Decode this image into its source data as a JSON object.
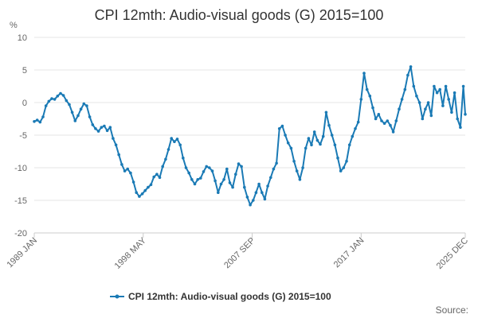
{
  "chart_data": {
    "type": "line",
    "title": "CPI 12mth: Audio-visual goods (G) 2015=100",
    "unit_label": "%",
    "ylim": [
      -20,
      10
    ],
    "y_ticks": [
      "10",
      "5",
      "0",
      "-5",
      "-10",
      "-15",
      "-20"
    ],
    "x_ticks": [
      "1989 JAN",
      "1998 MAY",
      "2007 SEP",
      "2017 JAN",
      "2025 DEC"
    ],
    "x_range": [
      "1989-01",
      "2025-12"
    ],
    "grid": true,
    "legend_position": "bottom",
    "source_label": "Source:",
    "series": [
      {
        "name": "CPI 12mth: Audio-visual goods (G) 2015=100",
        "color": "#1a7ab5",
        "points": [
          [
            "1989-01",
            -2.9
          ],
          [
            "1989-04",
            -2.7
          ],
          [
            "1989-07",
            -3.0
          ],
          [
            "1989-10",
            -2.2
          ],
          [
            "1990-01",
            -0.5
          ],
          [
            "1990-04",
            0.2
          ],
          [
            "1990-07",
            0.6
          ],
          [
            "1990-10",
            0.5
          ],
          [
            "1991-01",
            1.0
          ],
          [
            "1991-04",
            1.4
          ],
          [
            "1991-07",
            1.1
          ],
          [
            "1991-10",
            0.3
          ],
          [
            "1992-01",
            -0.3
          ],
          [
            "1992-04",
            -1.5
          ],
          [
            "1992-07",
            -2.8
          ],
          [
            "1992-10",
            -2.0
          ],
          [
            "1993-01",
            -1.0
          ],
          [
            "1993-04",
            -0.2
          ],
          [
            "1993-07",
            -0.5
          ],
          [
            "1993-10",
            -2.2
          ],
          [
            "1994-01",
            -3.4
          ],
          [
            "1994-04",
            -4.0
          ],
          [
            "1994-07",
            -4.4
          ],
          [
            "1994-10",
            -3.8
          ],
          [
            "1995-01",
            -3.6
          ],
          [
            "1995-04",
            -4.3
          ],
          [
            "1995-07",
            -3.8
          ],
          [
            "1995-10",
            -5.5
          ],
          [
            "1996-01",
            -6.5
          ],
          [
            "1996-04",
            -8.0
          ],
          [
            "1996-07",
            -9.5
          ],
          [
            "1996-10",
            -10.5
          ],
          [
            "1997-01",
            -10.2
          ],
          [
            "1997-04",
            -10.8
          ],
          [
            "1997-07",
            -12.2
          ],
          [
            "1997-10",
            -13.8
          ],
          [
            "1998-01",
            -14.4
          ],
          [
            "1998-04",
            -14.0
          ],
          [
            "1998-07",
            -13.5
          ],
          [
            "1998-10",
            -13.0
          ],
          [
            "1999-01",
            -12.6
          ],
          [
            "1999-04",
            -11.4
          ],
          [
            "1999-07",
            -11.0
          ],
          [
            "1999-10",
            -11.5
          ],
          [
            "2000-01",
            -9.8
          ],
          [
            "2000-04",
            -8.7
          ],
          [
            "2000-07",
            -7.2
          ],
          [
            "2000-10",
            -5.5
          ],
          [
            "2001-01",
            -6.0
          ],
          [
            "2001-04",
            -5.6
          ],
          [
            "2001-07",
            -6.5
          ],
          [
            "2001-10",
            -8.5
          ],
          [
            "2002-01",
            -10.0
          ],
          [
            "2002-04",
            -10.8
          ],
          [
            "2002-07",
            -11.8
          ],
          [
            "2002-10",
            -12.5
          ],
          [
            "2003-01",
            -11.8
          ],
          [
            "2003-04",
            -11.6
          ],
          [
            "2003-07",
            -10.6
          ],
          [
            "2003-10",
            -9.8
          ],
          [
            "2004-01",
            -10.0
          ],
          [
            "2004-04",
            -10.5
          ],
          [
            "2004-07",
            -12.0
          ],
          [
            "2004-10",
            -13.8
          ],
          [
            "2005-01",
            -12.5
          ],
          [
            "2005-04",
            -11.8
          ],
          [
            "2005-07",
            -10.2
          ],
          [
            "2005-10",
            -12.3
          ],
          [
            "2006-01",
            -13.0
          ],
          [
            "2006-04",
            -11.0
          ],
          [
            "2006-07",
            -9.4
          ],
          [
            "2006-10",
            -9.8
          ],
          [
            "2007-01",
            -13.0
          ],
          [
            "2007-04",
            -14.5
          ],
          [
            "2007-07",
            -15.7
          ],
          [
            "2007-10",
            -15.0
          ],
          [
            "2008-01",
            -13.8
          ],
          [
            "2008-04",
            -12.5
          ],
          [
            "2008-07",
            -13.8
          ],
          [
            "2008-10",
            -14.8
          ],
          [
            "2009-01",
            -12.8
          ],
          [
            "2009-04",
            -11.5
          ],
          [
            "2009-07",
            -10.2
          ],
          [
            "2009-10",
            -9.3
          ],
          [
            "2010-01",
            -4.0
          ],
          [
            "2010-04",
            -3.6
          ],
          [
            "2010-07",
            -5.0
          ],
          [
            "2010-10",
            -6.2
          ],
          [
            "2011-01",
            -7.0
          ],
          [
            "2011-04",
            -9.0
          ],
          [
            "2011-07",
            -10.5
          ],
          [
            "2011-10",
            -11.8
          ],
          [
            "2012-01",
            -10.0
          ],
          [
            "2012-04",
            -7.0
          ],
          [
            "2012-07",
            -5.5
          ],
          [
            "2012-10",
            -6.5
          ],
          [
            "2013-01",
            -4.5
          ],
          [
            "2013-04",
            -5.8
          ],
          [
            "2013-07",
            -6.4
          ],
          [
            "2013-10",
            -5.2
          ],
          [
            "2014-01",
            -1.5
          ],
          [
            "2014-04",
            -3.5
          ],
          [
            "2014-07",
            -5.0
          ],
          [
            "2014-10",
            -6.5
          ],
          [
            "2015-01",
            -8.5
          ],
          [
            "2015-04",
            -10.5
          ],
          [
            "2015-07",
            -10.0
          ],
          [
            "2015-10",
            -9.0
          ],
          [
            "2016-01",
            -6.5
          ],
          [
            "2016-04",
            -5.2
          ],
          [
            "2016-07",
            -4.0
          ],
          [
            "2016-10",
            -3.0
          ],
          [
            "2017-01",
            0.5
          ],
          [
            "2017-04",
            4.5
          ],
          [
            "2017-07",
            2.0
          ],
          [
            "2017-10",
            1.0
          ],
          [
            "2018-01",
            -0.8
          ],
          [
            "2018-04",
            -2.5
          ],
          [
            "2018-07",
            -1.8
          ],
          [
            "2018-10",
            -2.8
          ],
          [
            "2019-01",
            -3.2
          ],
          [
            "2019-04",
            -2.8
          ],
          [
            "2019-07",
            -3.5
          ],
          [
            "2019-10",
            -4.5
          ],
          [
            "2020-01",
            -2.8
          ],
          [
            "2020-04",
            -1.0
          ],
          [
            "2020-07",
            0.5
          ],
          [
            "2020-10",
            2.0
          ],
          [
            "2021-01",
            4.2
          ],
          [
            "2021-04",
            5.5
          ],
          [
            "2021-07",
            2.5
          ],
          [
            "2021-10",
            1.0
          ],
          [
            "2022-01",
            0.0
          ],
          [
            "2022-04",
            -2.5
          ],
          [
            "2022-07",
            -1.0
          ],
          [
            "2022-10",
            0.0
          ],
          [
            "2023-01",
            -2.0
          ],
          [
            "2023-04",
            2.5
          ],
          [
            "2023-07",
            1.5
          ],
          [
            "2023-10",
            2.0
          ],
          [
            "2024-01",
            -0.5
          ],
          [
            "2024-04",
            2.5
          ],
          [
            "2024-07",
            0.5
          ],
          [
            "2024-10",
            -1.5
          ],
          [
            "2025-01",
            1.5
          ],
          [
            "2025-04",
            -2.5
          ],
          [
            "2025-07",
            -3.8
          ],
          [
            "2025-10",
            2.5
          ],
          [
            "2025-12",
            -1.8
          ]
        ]
      }
    ]
  }
}
